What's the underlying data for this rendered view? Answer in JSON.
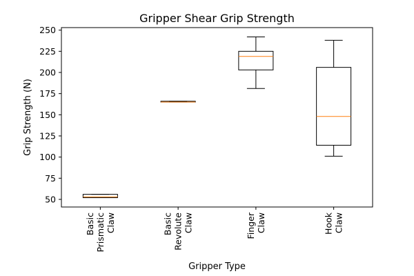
{
  "chart_data": {
    "type": "box",
    "title": "Gripper Shear Grip Strength",
    "xlabel": "Gripper Type",
    "ylabel": "Grip Strength (N)",
    "ylim": [
      41,
      253
    ],
    "yticks": [
      50,
      75,
      100,
      125,
      150,
      175,
      200,
      225,
      250
    ],
    "categories": [
      [
        "Basic",
        "Prismatic",
        "Claw"
      ],
      [
        "Basic",
        "Revolute",
        "Claw"
      ],
      [
        "Finger",
        "Claw"
      ],
      [
        "Hook",
        "Claw"
      ]
    ],
    "boxes": [
      {
        "whisker_low": 52,
        "q1": 52,
        "median": 53,
        "q3": 56,
        "whisker_high": 56
      },
      {
        "whisker_low": 165,
        "q1": 165,
        "median": 165,
        "q3": 166,
        "whisker_high": 166
      },
      {
        "whisker_low": 181,
        "q1": 203,
        "median": 219,
        "q3": 225,
        "whisker_high": 242
      },
      {
        "whisker_low": 101,
        "q1": 114,
        "median": 148,
        "q3": 206,
        "whisker_high": 238
      }
    ],
    "colors": {
      "box": "#000000",
      "median": "#ff7f0e"
    },
    "grid": false,
    "legend": "none"
  }
}
